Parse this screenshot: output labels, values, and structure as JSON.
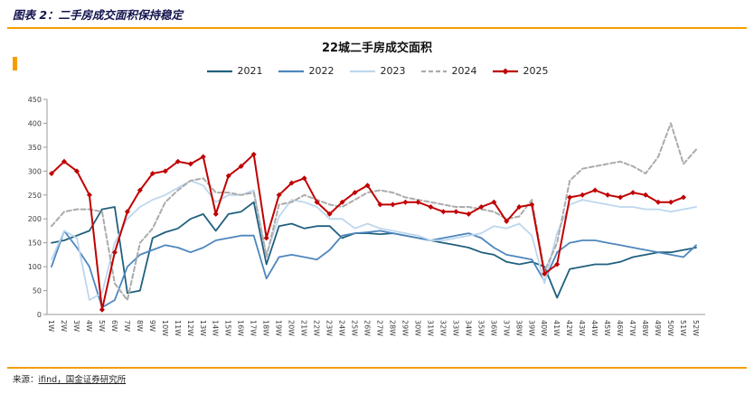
{
  "header": {
    "title": "图表 2：二手房成交面积保持稳定"
  },
  "footer": {
    "source_prefix": "来源：",
    "source_body": "ifind，国金证券研究所"
  },
  "accent_color": "#F59E00",
  "chart_data": {
    "type": "line",
    "title": "22城二手房成交面积",
    "xlabel": "",
    "ylabel": "",
    "ylim": [
      0,
      450
    ],
    "ytick_step": 50,
    "grid": false,
    "legend_position": "top",
    "categories": [
      "1W",
      "2W",
      "3W",
      "4W",
      "5W",
      "6W",
      "7W",
      "8W",
      "9W",
      "10W",
      "11W",
      "12W",
      "13W",
      "14W",
      "15W",
      "16W",
      "17W",
      "18W",
      "19W",
      "20W",
      "21W",
      "22W",
      "23W",
      "24W",
      "25W",
      "26W",
      "27W",
      "28W",
      "29W",
      "30W",
      "31W",
      "32W",
      "33W",
      "34W",
      "35W",
      "36W",
      "37W",
      "38W",
      "39W",
      "40W",
      "41W",
      "42W",
      "43W",
      "44W",
      "45W",
      "46W",
      "47W",
      "48W",
      "49W",
      "50W",
      "51W",
      "52W"
    ],
    "series": [
      {
        "name": "2021",
        "color": "#20607E",
        "width": 1.8,
        "values": [
          150,
          155,
          165,
          175,
          220,
          225,
          45,
          50,
          160,
          172,
          180,
          200,
          210,
          175,
          210,
          215,
          235,
          105,
          185,
          190,
          180,
          185,
          185,
          160,
          170,
          170,
          168,
          170,
          165,
          160,
          155,
          150,
          145,
          140,
          130,
          125,
          110,
          105,
          110,
          100,
          35,
          95,
          100,
          105,
          105,
          110,
          120,
          125,
          130,
          130,
          135,
          140
        ]
      },
      {
        "name": "2022",
        "color": "#4E86BE",
        "width": 1.8,
        "values": [
          100,
          175,
          140,
          100,
          15,
          30,
          100,
          125,
          135,
          145,
          140,
          130,
          140,
          155,
          160,
          165,
          165,
          75,
          120,
          125,
          120,
          115,
          135,
          165,
          170,
          172,
          175,
          170,
          165,
          160,
          155,
          160,
          165,
          170,
          160,
          140,
          125,
          120,
          115,
          70,
          130,
          150,
          155,
          155,
          150,
          145,
          140,
          135,
          130,
          125,
          120,
          145
        ]
      },
      {
        "name": "2023",
        "color": "#BDD7EE",
        "width": 1.8,
        "values": [
          115,
          175,
          160,
          30,
          45,
          150,
          200,
          225,
          240,
          250,
          265,
          280,
          270,
          235,
          250,
          250,
          260,
          125,
          205,
          240,
          235,
          225,
          200,
          200,
          180,
          190,
          180,
          175,
          170,
          165,
          155,
          155,
          160,
          165,
          170,
          185,
          180,
          190,
          165,
          65,
          170,
          230,
          240,
          235,
          230,
          225,
          225,
          220,
          220,
          215,
          220,
          225
        ]
      },
      {
        "name": "2024",
        "color": "#ABABAB",
        "width": 2,
        "dash": "5 3",
        "values": [
          185,
          215,
          220,
          220,
          215,
          65,
          30,
          150,
          180,
          235,
          260,
          280,
          285,
          255,
          255,
          250,
          255,
          120,
          230,
          235,
          250,
          240,
          230,
          225,
          240,
          255,
          260,
          255,
          245,
          240,
          235,
          230,
          225,
          225,
          220,
          215,
          200,
          205,
          240,
          90,
          150,
          280,
          305,
          310,
          315,
          320,
          310,
          295,
          330,
          400,
          315,
          345
        ]
      },
      {
        "name": "2025",
        "color": "#C00000",
        "width": 2,
        "marker": "diamond",
        "values": [
          295,
          320,
          300,
          250,
          10,
          130,
          215,
          260,
          295,
          300,
          320,
          315,
          330,
          210,
          290,
          310,
          335,
          160,
          250,
          275,
          285,
          235,
          210,
          235,
          255,
          270,
          230,
          230,
          235,
          235,
          225,
          215,
          215,
          210,
          225,
          235,
          195,
          225,
          230,
          85,
          105,
          245,
          250,
          260,
          250,
          245,
          255,
          250,
          235,
          235,
          245,
          null
        ]
      }
    ]
  }
}
